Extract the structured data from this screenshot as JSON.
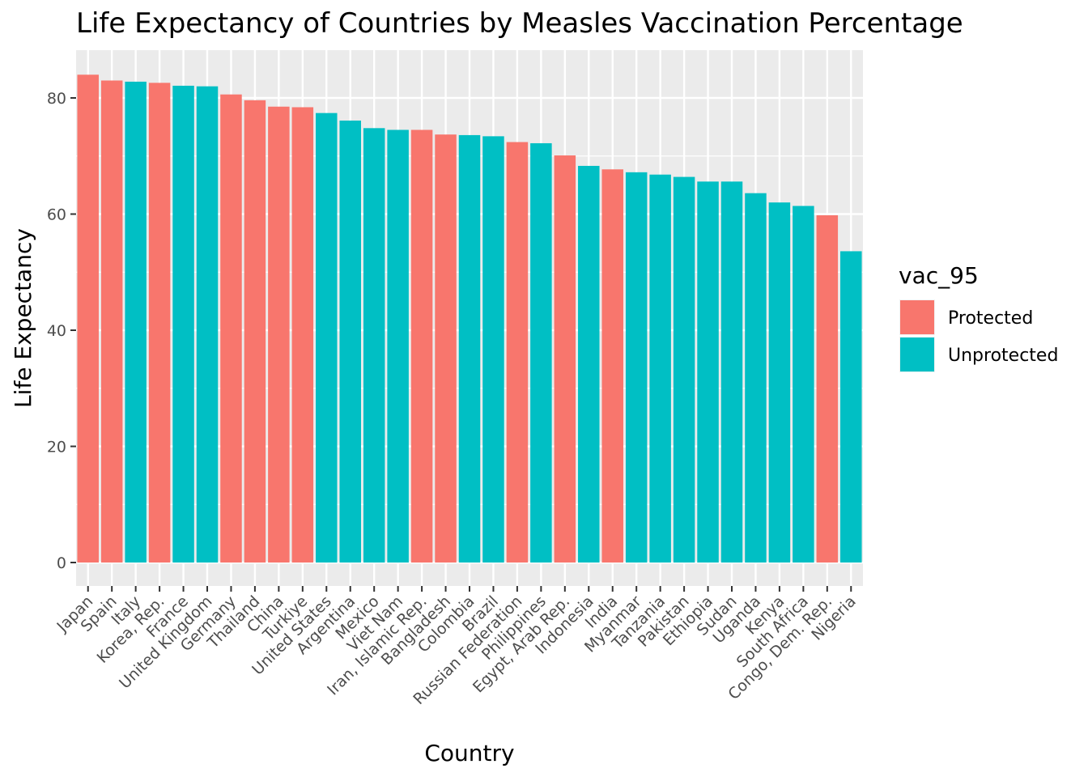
{
  "chart_data": {
    "type": "bar",
    "title": "Life Expectancy of Countries by Measles Vaccination Percentage",
    "xlabel": "Country",
    "ylabel": "Life Expectancy",
    "ylim": [
      0,
      88
    ],
    "yticks": [
      0,
      20,
      40,
      60,
      80
    ],
    "grid": true,
    "legend_position": "right",
    "legend": {
      "title": "vac_95",
      "entries": [
        {
          "label": "Protected",
          "color": "#F8766D"
        },
        {
          "label": "Unprotected",
          "color": "#00BFC4"
        }
      ]
    },
    "categories": [
      "Japan",
      "Spain",
      "Italy",
      "Korea, Rep.",
      "France",
      "United Kingdom",
      "Germany",
      "Thailand",
      "China",
      "Turkiye",
      "United States",
      "Argentina",
      "Mexico",
      "Viet Nam",
      "Iran, Islamic Rep.",
      "Bangladesh",
      "Colombia",
      "Brazil",
      "Russian Federation",
      "Philippines",
      "Egypt, Arab Rep.",
      "Indonesia",
      "India",
      "Myanmar",
      "Tanzania",
      "Pakistan",
      "Ethiopia",
      "Sudan",
      "Uganda",
      "Kenya",
      "South Africa",
      "Congo, Dem. Rep.",
      "Nigeria"
    ],
    "values": [
      84.0,
      83.0,
      82.8,
      82.6,
      82.1,
      82.0,
      80.6,
      79.6,
      78.5,
      78.4,
      77.4,
      76.1,
      74.8,
      74.5,
      74.5,
      73.7,
      73.6,
      73.4,
      72.4,
      72.2,
      70.1,
      68.3,
      67.7,
      67.2,
      66.8,
      66.4,
      65.6,
      65.6,
      63.6,
      62.0,
      61.4,
      59.8,
      53.6
    ],
    "groups": [
      "Protected",
      "Protected",
      "Unprotected",
      "Protected",
      "Unprotected",
      "Unprotected",
      "Protected",
      "Protected",
      "Protected",
      "Protected",
      "Unprotected",
      "Unprotected",
      "Unprotected",
      "Unprotected",
      "Protected",
      "Protected",
      "Unprotected",
      "Unprotected",
      "Protected",
      "Unprotected",
      "Protected",
      "Unprotected",
      "Protected",
      "Unprotected",
      "Unprotected",
      "Unprotected",
      "Unprotected",
      "Unprotected",
      "Unprotected",
      "Unprotected",
      "Unprotected",
      "Protected",
      "Unprotected"
    ]
  }
}
